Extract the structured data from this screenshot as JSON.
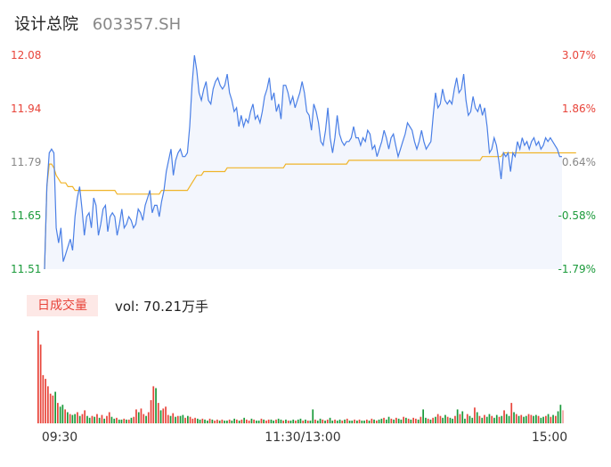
{
  "header": {
    "name": "设计总院",
    "code": "603357.SH"
  },
  "colors": {
    "up": "#e8443a",
    "down": "#1a9a3a",
    "neutral": "#888888",
    "price_line": "#4a7fe6",
    "avg_line": "#f0b429",
    "area_fill": "#f3f6fd"
  },
  "volume_panel": {
    "badge": "日成交量",
    "vol_label": "vol: 70.21万手"
  },
  "chart_data": {
    "type": "line",
    "title": "",
    "y_ticks_left": [
      "12.08",
      "11.94",
      "11.79",
      "11.65",
      "11.51"
    ],
    "y_ticks_right": [
      "3.07%",
      "1.86%",
      "0.64%",
      "-0.58%",
      "-1.79%"
    ],
    "ylim": [
      11.51,
      12.08
    ],
    "x_ticks": [
      "09:30",
      "11:30/13:00",
      "15:00"
    ],
    "series": [
      {
        "values": [
          11.51,
          11.73,
          11.82,
          11.83,
          11.82,
          11.62,
          11.58,
          11.62,
          11.53,
          11.55,
          11.57,
          11.59,
          11.56,
          11.65,
          11.7,
          11.73,
          11.67,
          11.6,
          11.65,
          11.66,
          11.62,
          11.7,
          11.68,
          11.6,
          11.63,
          11.67,
          11.68,
          11.61,
          11.65,
          11.66,
          11.65,
          11.6,
          11.63,
          11.67,
          11.62,
          11.63,
          11.65,
          11.64,
          11.62,
          11.63,
          11.67,
          11.66,
          11.64,
          11.68,
          11.7,
          11.72,
          11.66,
          11.68,
          11.68,
          11.65,
          11.69,
          11.72,
          11.77,
          11.8,
          11.83,
          11.76,
          11.8,
          11.82,
          11.83,
          11.81,
          11.81,
          11.82,
          11.89,
          12.0,
          12.08,
          12.04,
          11.98,
          11.96,
          11.99,
          12.01,
          11.96,
          11.95,
          11.99,
          12.01,
          12.02,
          12.0,
          11.99,
          12.0,
          12.03,
          11.98,
          11.96,
          11.93,
          11.94,
          11.89,
          11.92,
          11.89,
          11.91,
          11.9,
          11.93,
          11.95,
          11.91,
          11.92,
          11.9,
          11.93,
          11.97,
          11.99,
          12.02,
          11.96,
          11.98,
          11.93,
          11.95,
          11.91,
          12.0,
          12.0,
          11.98,
          11.95,
          11.97,
          11.94,
          11.96,
          11.98,
          12.01,
          11.98,
          11.93,
          11.92,
          11.88,
          11.95,
          11.93,
          11.9,
          11.85,
          11.84,
          11.88,
          11.94,
          11.86,
          11.82,
          11.86,
          11.92,
          11.87,
          11.85,
          11.84,
          11.85,
          11.85,
          11.86,
          11.89,
          11.86,
          11.86,
          11.84,
          11.86,
          11.85,
          11.88,
          11.87,
          11.83,
          11.84,
          11.81,
          11.83,
          11.85,
          11.88,
          11.86,
          11.83,
          11.86,
          11.87,
          11.84,
          11.81,
          11.83,
          11.85,
          11.87,
          11.9,
          11.89,
          11.88,
          11.85,
          11.83,
          11.85,
          11.88,
          11.85,
          11.83,
          11.84,
          11.85,
          11.92,
          11.98,
          11.94,
          11.95,
          11.99,
          11.96,
          11.95,
          11.96,
          11.95,
          11.99,
          12.02,
          11.98,
          11.99,
          12.03,
          11.96,
          11.92,
          11.93,
          11.97,
          11.94,
          11.93,
          11.95,
          11.92,
          11.94,
          11.89,
          11.82,
          11.83,
          11.86,
          11.84,
          11.8,
          11.75,
          11.82,
          11.81,
          11.82,
          11.77,
          11.82,
          11.81,
          11.85,
          11.83,
          11.86,
          11.84,
          11.85,
          11.83,
          11.85,
          11.86,
          11.84,
          11.85,
          11.83,
          11.84,
          11.86,
          11.85,
          11.86,
          11.85,
          11.84,
          11.83,
          11.81,
          11.81
        ]
      },
      {
        "values": [
          11.51,
          11.73,
          11.79,
          11.79,
          11.78,
          11.76,
          11.75,
          11.74,
          11.74,
          11.74,
          11.73,
          11.73,
          11.73,
          11.72,
          11.72,
          11.72,
          11.72,
          11.72,
          11.72,
          11.72,
          11.72,
          11.72,
          11.72,
          11.72,
          11.72,
          11.72,
          11.72,
          11.72,
          11.72,
          11.72,
          11.72,
          11.71,
          11.71,
          11.71,
          11.71,
          11.71,
          11.71,
          11.71,
          11.71,
          11.71,
          11.71,
          11.71,
          11.71,
          11.71,
          11.71,
          11.71,
          11.71,
          11.71,
          11.71,
          11.71,
          11.72,
          11.72,
          11.72,
          11.72,
          11.72,
          11.72,
          11.72,
          11.72,
          11.72,
          11.72,
          11.72,
          11.72,
          11.73,
          11.74,
          11.75,
          11.76,
          11.76,
          11.76,
          11.77,
          11.77,
          11.77,
          11.77,
          11.77,
          11.77,
          11.77,
          11.77,
          11.77,
          11.77,
          11.78,
          11.78,
          11.78,
          11.78,
          11.78,
          11.78,
          11.78,
          11.78,
          11.78,
          11.78,
          11.78,
          11.78,
          11.78,
          11.78,
          11.78,
          11.78,
          11.78,
          11.78,
          11.78,
          11.78,
          11.78,
          11.78,
          11.78,
          11.78,
          11.78,
          11.79,
          11.79,
          11.79,
          11.79,
          11.79,
          11.79,
          11.79,
          11.79,
          11.79,
          11.79,
          11.79,
          11.79,
          11.79,
          11.79,
          11.79,
          11.79,
          11.79,
          11.79,
          11.79,
          11.79,
          11.79,
          11.79,
          11.79,
          11.79,
          11.79,
          11.79,
          11.79,
          11.8,
          11.8,
          11.8,
          11.8,
          11.8,
          11.8,
          11.8,
          11.8,
          11.8,
          11.8,
          11.8,
          11.8,
          11.8,
          11.8,
          11.8,
          11.8,
          11.8,
          11.8,
          11.8,
          11.8,
          11.8,
          11.8,
          11.8,
          11.8,
          11.8,
          11.8,
          11.8,
          11.8,
          11.8,
          11.8,
          11.8,
          11.8,
          11.8,
          11.8,
          11.8,
          11.8,
          11.8,
          11.8,
          11.8,
          11.8,
          11.8,
          11.8,
          11.8,
          11.8,
          11.8,
          11.8,
          11.8,
          11.8,
          11.8,
          11.8,
          11.8,
          11.8,
          11.8,
          11.8,
          11.8,
          11.8,
          11.8,
          11.81,
          11.81,
          11.81,
          11.81,
          11.81,
          11.81,
          11.81,
          11.81,
          11.81,
          11.82,
          11.82,
          11.82,
          11.82,
          11.82,
          11.82,
          11.82,
          11.82,
          11.82,
          11.82,
          11.82,
          11.82,
          11.82,
          11.82,
          11.82,
          11.82,
          11.82,
          11.82,
          11.82,
          11.82,
          11.82,
          11.82,
          11.82,
          11.82,
          11.82,
          11.82,
          11.82,
          11.82,
          11.82,
          11.82,
          11.82,
          11.82
        ]
      }
    ],
    "volume": {
      "values": [
        100,
        85,
        52,
        48,
        40,
        32,
        30,
        34,
        22,
        18,
        20,
        15,
        12,
        10,
        9,
        10,
        12,
        8,
        10,
        14,
        8,
        6,
        8,
        7,
        10,
        6,
        9,
        5,
        8,
        12,
        7,
        5,
        6,
        4,
        4,
        5,
        4,
        4,
        6,
        7,
        15,
        12,
        16,
        10,
        8,
        12,
        25,
        40,
        38,
        22,
        14,
        16,
        18,
        9,
        8,
        11,
        7,
        8,
        8,
        9,
        6,
        8,
        7,
        5,
        6,
        5,
        4,
        5,
        4,
        3,
        5,
        4,
        3,
        4,
        3,
        4,
        3,
        3,
        4,
        3,
        5,
        4,
        3,
        4,
        6,
        4,
        3,
        5,
        4,
        3,
        3,
        5,
        4,
        3,
        4,
        4,
        3,
        4,
        5,
        4,
        3,
        4,
        3,
        3,
        4,
        3,
        4,
        5,
        3,
        4,
        3,
        3,
        15,
        4,
        3,
        5,
        4,
        3,
        4,
        6,
        3,
        4,
        3,
        4,
        3,
        4,
        5,
        3,
        3,
        4,
        3,
        4,
        3,
        3,
        4,
        3,
        5,
        4,
        3,
        4,
        5,
        6,
        4,
        7,
        5,
        4,
        6,
        5,
        4,
        7,
        6,
        5,
        4,
        6,
        5,
        4,
        7,
        15,
        6,
        5,
        4,
        6,
        7,
        10,
        8,
        6,
        9,
        7,
        6,
        5,
        8,
        15,
        10,
        13,
        5,
        10,
        8,
        6,
        17,
        12,
        8,
        6,
        9,
        7,
        10,
        8,
        6,
        9,
        7,
        8,
        14,
        10,
        8,
        22,
        12,
        10,
        8,
        9,
        7,
        8,
        10,
        9,
        8,
        9,
        8,
        6,
        7,
        8,
        10,
        7,
        9,
        8,
        13,
        20,
        14
      ],
      "up": [
        true,
        true,
        true,
        true,
        true,
        true,
        true,
        false,
        true,
        false,
        false,
        true,
        false,
        true,
        false,
        false,
        true,
        false,
        true,
        true,
        false,
        false,
        true,
        false,
        true,
        false,
        true,
        false,
        true,
        true,
        false,
        false,
        true,
        false,
        false,
        true,
        false,
        true,
        false,
        true,
        true,
        false,
        true,
        true,
        false,
        true,
        true,
        true,
        false,
        true,
        false,
        true,
        true,
        true,
        false,
        true,
        false,
        true,
        false,
        false,
        true,
        false,
        true,
        true,
        true,
        false,
        false,
        true,
        false,
        false,
        true,
        false,
        true,
        true,
        false,
        true,
        false,
        false,
        true,
        false,
        false,
        true,
        false,
        true,
        false,
        true,
        true,
        false,
        true,
        false,
        false,
        true,
        false,
        true,
        true,
        false,
        false,
        true,
        false,
        false,
        true,
        false,
        true,
        false,
        false,
        true,
        false,
        false,
        true,
        false,
        true,
        false,
        false,
        true,
        false,
        false,
        true,
        false,
        true,
        false,
        false,
        true,
        false,
        false,
        true,
        false,
        true,
        false,
        false,
        true,
        false,
        true,
        false,
        false,
        true,
        false,
        true,
        false,
        true,
        false,
        false,
        true,
        false,
        false,
        true,
        false,
        true,
        false,
        false,
        true,
        false,
        true,
        false,
        true,
        true,
        false,
        true,
        false,
        false,
        true,
        false,
        true,
        false,
        true,
        true,
        false,
        false,
        true,
        false,
        false,
        true,
        false,
        true,
        false,
        false,
        true,
        false,
        false,
        true,
        false,
        true,
        false,
        true,
        false,
        false,
        true,
        false,
        false,
        true,
        false,
        true,
        false,
        false,
        true,
        false,
        true,
        false,
        true,
        false,
        false,
        true,
        true,
        false,
        false,
        true,
        false,
        false,
        true,
        false,
        true,
        false,
        true,
        false,
        false,
        true,
        true,
        false,
        true,
        false
      ]
    }
  }
}
